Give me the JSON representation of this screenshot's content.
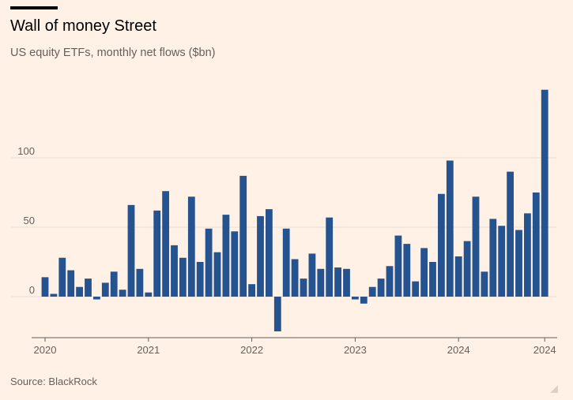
{
  "header": {
    "title": "Wall of money Street",
    "subtitle": "US equity ETFs, monthly net flows ($bn)"
  },
  "footer": {
    "source": "Source: BlackRock"
  },
  "colors": {
    "bar": "#24538f",
    "background": "#fff1e5",
    "gridline": "#e9ddd2",
    "axis": "#66605c"
  },
  "chart_data": {
    "type": "bar",
    "x_tick_labels": [
      "2020",
      "2021",
      "2022",
      "2023",
      "2024",
      "2024"
    ],
    "y_ticks": [
      0,
      50,
      100
    ],
    "ylim": [
      -25,
      150
    ],
    "grid": true,
    "values": [
      14,
      2,
      28,
      19,
      7,
      13,
      -2,
      10,
      18,
      5,
      66,
      20,
      3,
      62,
      76,
      37,
      28,
      72,
      25,
      49,
      32,
      59,
      47,
      87,
      9,
      58,
      63,
      -25,
      49,
      27,
      13,
      31,
      20,
      57,
      21,
      20,
      -2,
      -5,
      7,
      13,
      22,
      44,
      38,
      11,
      35,
      25,
      74,
      98,
      29,
      40,
      72,
      18,
      56,
      51,
      90,
      48,
      60,
      75,
      149
    ]
  }
}
